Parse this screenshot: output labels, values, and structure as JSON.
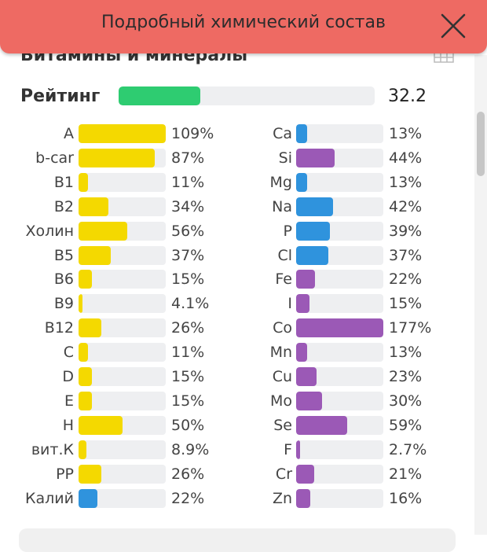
{
  "header": {
    "title": "Подробный химический состав"
  },
  "section": {
    "title": "Витамины и минералы"
  },
  "rating": {
    "label": "Рейтинг",
    "value": "32.2",
    "fill_fraction": 0.32
  },
  "colors": {
    "yellow": "#f4d900",
    "blue": "#2f93dd",
    "purple": "#9b59b6",
    "green": "#2ecc71",
    "header": "#ee6a63"
  },
  "vitamins": [
    {
      "name": "A",
      "percent": "109%",
      "value": 109,
      "color": "yellow"
    },
    {
      "name": "b-car",
      "percent": "87%",
      "value": 87,
      "color": "yellow"
    },
    {
      "name": "B1",
      "percent": "11%",
      "value": 11,
      "color": "yellow"
    },
    {
      "name": "B2",
      "percent": "34%",
      "value": 34,
      "color": "yellow"
    },
    {
      "name": "Холин",
      "percent": "56%",
      "value": 56,
      "color": "yellow"
    },
    {
      "name": "B5",
      "percent": "37%",
      "value": 37,
      "color": "yellow"
    },
    {
      "name": "B6",
      "percent": "15%",
      "value": 15,
      "color": "yellow"
    },
    {
      "name": "B9",
      "percent": "4.1%",
      "value": 4.1,
      "color": "yellow"
    },
    {
      "name": "B12",
      "percent": "26%",
      "value": 26,
      "color": "yellow"
    },
    {
      "name": "C",
      "percent": "11%",
      "value": 11,
      "color": "yellow"
    },
    {
      "name": "D",
      "percent": "15%",
      "value": 15,
      "color": "yellow"
    },
    {
      "name": "E",
      "percent": "15%",
      "value": 15,
      "color": "yellow"
    },
    {
      "name": "H",
      "percent": "50%",
      "value": 50,
      "color": "yellow"
    },
    {
      "name": "вит.К",
      "percent": "8.9%",
      "value": 8.9,
      "color": "yellow"
    },
    {
      "name": "PP",
      "percent": "26%",
      "value": 26,
      "color": "yellow"
    },
    {
      "name": "Калий",
      "percent": "22%",
      "value": 22,
      "color": "blue"
    }
  ],
  "minerals": [
    {
      "name": "Ca",
      "percent": "13%",
      "value": 13,
      "color": "blue"
    },
    {
      "name": "Si",
      "percent": "44%",
      "value": 44,
      "color": "purple"
    },
    {
      "name": "Mg",
      "percent": "13%",
      "value": 13,
      "color": "blue"
    },
    {
      "name": "Na",
      "percent": "42%",
      "value": 42,
      "color": "blue"
    },
    {
      "name": "P",
      "percent": "39%",
      "value": 39,
      "color": "blue"
    },
    {
      "name": "Cl",
      "percent": "37%",
      "value": 37,
      "color": "blue"
    },
    {
      "name": "Fe",
      "percent": "22%",
      "value": 22,
      "color": "purple"
    },
    {
      "name": "I",
      "percent": "15%",
      "value": 15,
      "color": "purple"
    },
    {
      "name": "Co",
      "percent": "177%",
      "value": 177,
      "color": "purple"
    },
    {
      "name": "Mn",
      "percent": "13%",
      "value": 13,
      "color": "purple"
    },
    {
      "name": "Cu",
      "percent": "23%",
      "value": 23,
      "color": "purple"
    },
    {
      "name": "Mo",
      "percent": "30%",
      "value": 30,
      "color": "purple"
    },
    {
      "name": "Se",
      "percent": "59%",
      "value": 59,
      "color": "purple"
    },
    {
      "name": "F",
      "percent": "2.7%",
      "value": 2.7,
      "color": "purple"
    },
    {
      "name": "Cr",
      "percent": "21%",
      "value": 21,
      "color": "purple"
    },
    {
      "name": "Zn",
      "percent": "16%",
      "value": 16,
      "color": "purple"
    }
  ]
}
